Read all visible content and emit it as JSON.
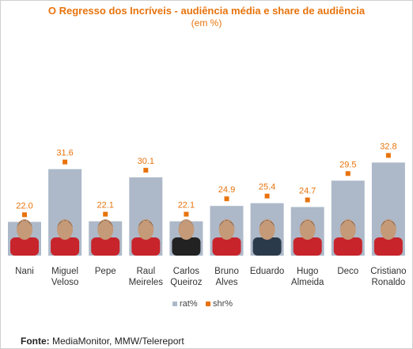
{
  "title": "O Regresso dos Incríveis - audiência média e share de audiência",
  "subtitle": "(em %)",
  "source_label": "Fonte:",
  "source_text": "MediaMonitor, MMW/Telereport",
  "colors": {
    "bar": "#adb9c9",
    "marker": "#e8730c",
    "title": "#e8730c"
  },
  "chart_data": {
    "type": "bar",
    "categories": [
      [
        "Nani"
      ],
      [
        "Miguel",
        "Veloso"
      ],
      [
        "Pepe"
      ],
      [
        "Raul",
        "Meireles"
      ],
      [
        "Carlos",
        "Queiroz"
      ],
      [
        "Bruno",
        "Alves"
      ],
      [
        "Eduardo"
      ],
      [
        "Hugo",
        "Almeida"
      ],
      [
        "Deco"
      ],
      [
        "Cristiano",
        "Ronaldo"
      ]
    ],
    "series": [
      {
        "name": "rat%",
        "type": "bar",
        "values": [
          22.0,
          31.6,
          22.1,
          30.1,
          22.1,
          24.9,
          25.4,
          24.7,
          29.5,
          32.8
        ]
      },
      {
        "name": "shr%",
        "type": "marker",
        "values": [
          22.0,
          31.6,
          22.1,
          30.1,
          22.1,
          24.9,
          25.4,
          24.7,
          29.5,
          32.8
        ]
      }
    ],
    "data_labels": [
      "22.0",
      "31.6",
      "22.1",
      "30.1",
      "22.1",
      "24.9",
      "25.4",
      "24.7",
      "29.5",
      "32.8"
    ],
    "legend_position": "bottom",
    "grid": false
  }
}
